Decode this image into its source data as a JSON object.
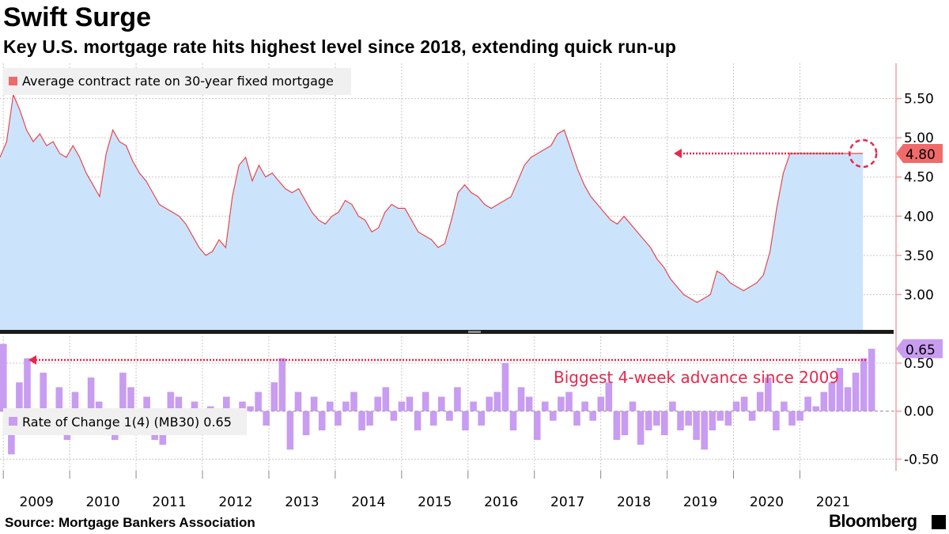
{
  "title": "Swift Surge",
  "subtitle": "Key U.S. mortgage rate hits highest level since 2018, extending quick run-up",
  "source": "Source: Mortgage Bankers Association",
  "brand": "Bloomberg",
  "colors": {
    "rate_line": "#e8474c",
    "rate_fill": "#cce4fb",
    "roc_bar": "#c89cf0",
    "highlight": "#f06a6a",
    "annotation": "#e8274c",
    "grid": "#c8c8c8"
  },
  "chart_data": [
    {
      "type": "area",
      "title": "Average contract rate on 30-year fixed mortgage",
      "legend": "Average contract rate on 30-year fixed mortgage",
      "ylim": [
        2.55,
        5.95
      ],
      "yticks": [
        3.0,
        3.5,
        4.0,
        4.5,
        5.0,
        5.5
      ],
      "ytick_labels": [
        "3.00",
        "3.50",
        "4.00",
        "4.50",
        "5.00",
        "5.50"
      ],
      "xlim": [
        2008.95,
        2022.15
      ],
      "x_labels": [
        "2009",
        "2010",
        "2011",
        "2012",
        "2013",
        "2014",
        "2015",
        "2016",
        "2017",
        "2018",
        "2019",
        "2020",
        "2021"
      ],
      "last_value": 4.8,
      "last_value_label": "4.80",
      "x": [
        2008.95,
        2009.05,
        2009.15,
        2009.25,
        2009.35,
        2009.45,
        2009.55,
        2009.65,
        2009.75,
        2009.85,
        2009.95,
        2010.05,
        2010.15,
        2010.25,
        2010.35,
        2010.45,
        2010.55,
        2010.65,
        2010.75,
        2010.85,
        2010.95,
        2011.05,
        2011.15,
        2011.25,
        2011.35,
        2011.45,
        2011.55,
        2011.65,
        2011.75,
        2011.85,
        2011.95,
        2012.05,
        2012.15,
        2012.25,
        2012.35,
        2012.45,
        2012.55,
        2012.65,
        2012.75,
        2012.85,
        2012.95,
        2013.05,
        2013.15,
        2013.25,
        2013.35,
        2013.45,
        2013.55,
        2013.65,
        2013.75,
        2013.85,
        2013.95,
        2014.05,
        2014.15,
        2014.25,
        2014.35,
        2014.45,
        2014.55,
        2014.65,
        2014.75,
        2014.85,
        2014.95,
        2015.05,
        2015.15,
        2015.25,
        2015.35,
        2015.45,
        2015.55,
        2015.65,
        2015.75,
        2015.85,
        2015.95,
        2016.05,
        2016.15,
        2016.25,
        2016.35,
        2016.45,
        2016.55,
        2016.65,
        2016.75,
        2016.85,
        2016.95,
        2017.05,
        2017.15,
        2017.25,
        2017.35,
        2017.45,
        2017.55,
        2017.65,
        2017.75,
        2017.85,
        2017.95,
        2018.05,
        2018.15,
        2018.25,
        2018.35,
        2018.45,
        2018.55,
        2018.65,
        2018.75,
        2018.85,
        2018.95,
        2019.05,
        2019.15,
        2019.25,
        2019.35,
        2019.45,
        2019.55,
        2019.65,
        2019.75,
        2019.85,
        2019.95,
        2020.05,
        2020.15,
        2020.25,
        2020.35,
        2020.45,
        2020.55,
        2020.65,
        2020.75,
        2020.85,
        2020.95,
        2021.05,
        2021.15,
        2021.25,
        2021.35,
        2021.45,
        2021.55,
        2021.65,
        2021.75,
        2021.85,
        2021.95,
        2022.05,
        2022.15
      ],
      "values": [
        4.75,
        4.95,
        5.55,
        5.35,
        5.1,
        4.95,
        5.05,
        4.9,
        4.95,
        4.8,
        4.75,
        4.9,
        4.75,
        4.55,
        4.4,
        4.25,
        4.8,
        5.1,
        4.95,
        4.9,
        4.7,
        4.55,
        4.45,
        4.3,
        4.15,
        4.1,
        4.05,
        4.0,
        3.9,
        3.75,
        3.6,
        3.5,
        3.55,
        3.7,
        3.6,
        4.25,
        4.65,
        4.75,
        4.45,
        4.65,
        4.5,
        4.55,
        4.45,
        4.35,
        4.3,
        4.35,
        4.2,
        4.05,
        3.95,
        3.9,
        4.0,
        4.05,
        4.2,
        4.15,
        4.0,
        3.95,
        3.8,
        3.85,
        4.05,
        4.15,
        4.1,
        4.1,
        3.95,
        3.8,
        3.75,
        3.7,
        3.6,
        3.65,
        3.95,
        4.3,
        4.4,
        4.3,
        4.25,
        4.15,
        4.1,
        4.15,
        4.2,
        4.25,
        4.45,
        4.65,
        4.75,
        4.8,
        4.85,
        4.9,
        5.05,
        5.1,
        4.85,
        4.6,
        4.4,
        4.25,
        4.15,
        4.05,
        3.95,
        3.9,
        4.0,
        3.9,
        3.8,
        3.7,
        3.6,
        3.45,
        3.35,
        3.2,
        3.1,
        3.0,
        2.95,
        2.9,
        2.95,
        3.0,
        3.3,
        3.25,
        3.15,
        3.1,
        3.05,
        3.1,
        3.15,
        3.25,
        3.55,
        4.1,
        4.55,
        4.8,
        4.8,
        4.8,
        4.8,
        4.8,
        4.8,
        4.8,
        4.8,
        4.8,
        4.8,
        4.8,
        4.8,
        4.8,
        4.8
      ]
    },
    {
      "type": "bar",
      "title": "Rate of Change 1(4) (MB30)",
      "legend": "Rate of Change 1(4) (MB30) 0.65",
      "ylim": [
        -0.62,
        0.78
      ],
      "yticks": [
        -0.5,
        0.0,
        0.5
      ],
      "ytick_labels": [
        "-0.50",
        "0.00",
        "0.50"
      ],
      "last_value": 0.65,
      "last_value_label": "0.65",
      "annotation": "Biggest 4-week advance since 2009",
      "values": [
        0.7,
        -0.45,
        0.3,
        0.55,
        -0.2,
        0.4,
        -0.1,
        0.25,
        -0.3,
        0.2,
        -0.15,
        0.35,
        0.1,
        -0.25,
        -0.3,
        0.4,
        0.25,
        -0.2,
        0.15,
        -0.3,
        -0.35,
        0.2,
        0.15,
        -0.2,
        0.1,
        -0.15,
        0.05,
        -0.1,
        0.15,
        -0.2,
        0.1,
        0.05,
        0.2,
        -0.15,
        0.3,
        0.55,
        -0.4,
        0.2,
        -0.25,
        0.15,
        -0.2,
        0.1,
        -0.15,
        0.1,
        0.2,
        -0.2,
        -0.15,
        0.15,
        0.25,
        -0.1,
        0.1,
        0.15,
        -0.2,
        0.2,
        -0.15,
        0.15,
        -0.1,
        0.25,
        -0.2,
        0.1,
        -0.15,
        0.15,
        0.2,
        0.5,
        -0.2,
        0.25,
        0.15,
        -0.3,
        0.1,
        -0.1,
        0.15,
        0.2,
        -0.15,
        0.1,
        -0.1,
        0.15,
        0.3,
        -0.3,
        -0.25,
        0.1,
        -0.35,
        -0.2,
        -0.15,
        -0.25,
        0.1,
        -0.2,
        -0.15,
        -0.3,
        -0.4,
        -0.2,
        -0.1,
        -0.15,
        0.1,
        0.15,
        -0.1,
        0.2,
        0.35,
        -0.2,
        0.1,
        -0.15,
        -0.1,
        0.15,
        0.05,
        0.2,
        0.3,
        0.45,
        0.25,
        0.4,
        0.55,
        0.65
      ]
    }
  ]
}
